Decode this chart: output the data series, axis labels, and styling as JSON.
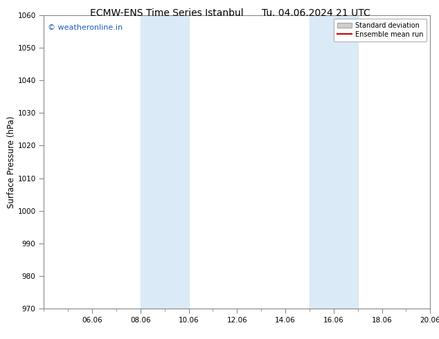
{
  "title_left": "ECMW-ENS Time Series Istanbul",
  "title_right": "Tu. 04.06.2024 21 UTC",
  "ylabel": "Surface Pressure (hPa)",
  "ylim": [
    970,
    1060
  ],
  "yticks": [
    970,
    980,
    990,
    1000,
    1010,
    1020,
    1030,
    1040,
    1050,
    1060
  ],
  "xlim": [
    0.0,
    16.0
  ],
  "xtick_labels": [
    "06.06",
    "08.06",
    "10.06",
    "12.06",
    "14.06",
    "16.06",
    "18.06",
    "20.06"
  ],
  "xtick_positions": [
    2.0,
    4.0,
    6.0,
    8.0,
    10.0,
    12.0,
    14.0,
    16.0
  ],
  "shaded_regions": [
    {
      "start": 4.0,
      "end": 6.0
    },
    {
      "start": 11.0,
      "end": 13.0
    }
  ],
  "shaded_color": "#daeaf7",
  "background_color": "#ffffff",
  "watermark_text": "© weatheronline.in",
  "watermark_color": "#1a5cb8",
  "watermark_fontsize": 8,
  "legend_std_label": "Standard deviation",
  "legend_mean_label": "Ensemble mean run",
  "legend_std_facecolor": "#d0d0d0",
  "legend_std_edgecolor": "#aaaaaa",
  "legend_mean_color": "#cc0000",
  "title_fontsize": 10,
  "tick_fontsize": 7.5,
  "ylabel_fontsize": 8.5,
  "grid_color": "#cccccc",
  "spine_color": "#888888"
}
